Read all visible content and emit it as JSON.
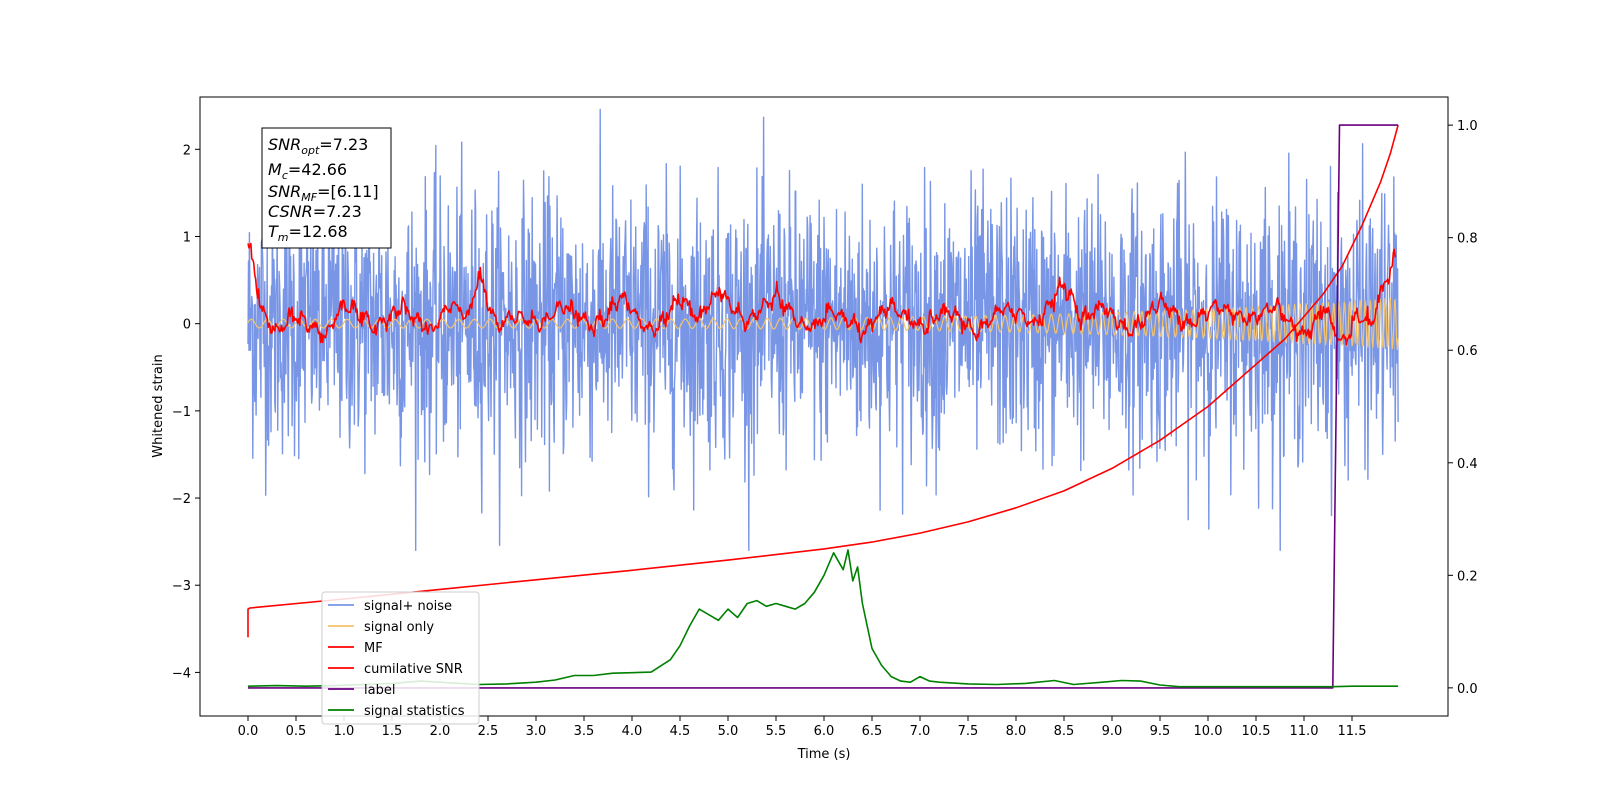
{
  "chart_data": {
    "type": "line",
    "title": "",
    "xlabel": "Time (s)",
    "ylabel": "Whitened strain",
    "y2label": "",
    "xlim": [
      -0.5,
      12.5
    ],
    "ylim": [
      -4.5,
      2.6
    ],
    "y2lim": [
      -0.05,
      1.05
    ],
    "x_ticks": [
      "0.0",
      "0.5",
      "1.0",
      "1.5",
      "2.0",
      "2.5",
      "3.0",
      "3.5",
      "4.0",
      "4.5",
      "5.0",
      "5.5",
      "6.0",
      "6.5",
      "7.0",
      "7.5",
      "8.0",
      "8.5",
      "9.0",
      "9.5",
      "10.0",
      "10.5",
      "11.0",
      "11.5"
    ],
    "y_ticks": [
      "2",
      "1",
      "0",
      "−1",
      "−2",
      "−3",
      "−4"
    ],
    "y2_ticks": [
      "1.0",
      "0.8",
      "0.6",
      "0.4",
      "0.2",
      "0.0"
    ],
    "grid": false,
    "legend_position": "lower-left",
    "info_box": {
      "snr_opt": {
        "name": "SNR",
        "sub": "opt",
        "value": "=7.23"
      },
      "mc": {
        "name": "M",
        "sub": "c",
        "value": "=42.66"
      },
      "snr_mf": {
        "name": "SNR",
        "sub": "MF",
        "value": "=[6.11]"
      },
      "csnr": {
        "name": "CSNR",
        "sub": "",
        "value": "=7.23"
      },
      "tm": {
        "name": "T",
        "sub": "m",
        "value": "=12.68"
      }
    },
    "series": [
      {
        "name": "signal+ noise",
        "color": "#7895e6",
        "axis": "left",
        "kind": "noise",
        "x_range": [
          0.0,
          11.98
        ],
        "std": 0.75,
        "min": -2.6,
        "max": 2.55
      },
      {
        "name": "signal only",
        "color": "#f5c36b",
        "axis": "left",
        "kind": "chirp",
        "x_range": [
          0.0,
          11.98
        ],
        "amplitude_start": 0.05,
        "amplitude_end": 0.3
      },
      {
        "name": "MF",
        "color": "#ff0000",
        "axis": "left",
        "kind": "matched-filter",
        "x": [
          0.0,
          0.05,
          0.15,
          0.3,
          0.5,
          0.8,
          1.0,
          1.3,
          1.6,
          1.9,
          2.1,
          2.3,
          2.4,
          2.6,
          2.8,
          3.0,
          3.3,
          3.6,
          3.9,
          4.2,
          4.5,
          4.7,
          4.9,
          5.2,
          5.5,
          5.8,
          6.1,
          6.4,
          6.7,
          7.0,
          7.3,
          7.6,
          7.9,
          8.2,
          8.5,
          8.7,
          8.9,
          9.2,
          9.5,
          9.8,
          10.1,
          10.4,
          10.7,
          11.0,
          11.2,
          11.4,
          11.55,
          11.7,
          11.85,
          11.95
        ],
        "y": [
          0.95,
          0.7,
          0.1,
          -0.1,
          0.1,
          -0.15,
          0.25,
          -0.05,
          0.2,
          -0.1,
          0.2,
          0.1,
          0.55,
          -0.05,
          0.1,
          0.0,
          0.2,
          -0.05,
          0.3,
          -0.1,
          0.3,
          0.05,
          0.4,
          0.0,
          0.35,
          -0.1,
          0.15,
          -0.1,
          0.2,
          -0.05,
          0.15,
          -0.1,
          0.2,
          0.0,
          0.45,
          0.05,
          0.2,
          -0.1,
          0.25,
          0.0,
          0.2,
          0.05,
          0.2,
          -0.15,
          0.2,
          -0.25,
          0.1,
          0.0,
          0.5,
          0.75
        ]
      },
      {
        "name": "cumilative SNR",
        "color": "#ff0000",
        "axis": "right",
        "x": [
          0.0,
          0.0,
          0.02,
          1.0,
          2.0,
          3.0,
          4.0,
          5.0,
          6.0,
          6.5,
          7.0,
          7.5,
          8.0,
          8.5,
          9.0,
          9.5,
          10.0,
          10.5,
          10.8,
          11.0,
          11.2,
          11.4,
          11.6,
          11.8,
          11.9,
          11.98
        ],
        "y": [
          0.09,
          0.14,
          0.142,
          0.158,
          0.175,
          0.192,
          0.209,
          0.227,
          0.247,
          0.259,
          0.275,
          0.295,
          0.32,
          0.35,
          0.39,
          0.44,
          0.5,
          0.575,
          0.62,
          0.66,
          0.7,
          0.75,
          0.82,
          0.9,
          0.95,
          1.0
        ]
      },
      {
        "name": "label",
        "color": "#6a0080",
        "axis": "right",
        "x": [
          0.0,
          11.3,
          11.37,
          11.98
        ],
        "y": [
          0.0,
          0.0,
          1.0,
          1.0
        ]
      },
      {
        "name": "signal statistics",
        "color": "#008000",
        "axis": "right",
        "x": [
          0.0,
          0.3,
          0.6,
          0.9,
          1.2,
          1.5,
          1.8,
          2.1,
          2.4,
          2.7,
          3.0,
          3.2,
          3.4,
          3.6,
          3.8,
          4.0,
          4.2,
          4.4,
          4.5,
          4.6,
          4.7,
          4.8,
          4.9,
          5.0,
          5.1,
          5.2,
          5.3,
          5.4,
          5.5,
          5.6,
          5.7,
          5.8,
          5.9,
          6.0,
          6.1,
          6.2,
          6.25,
          6.3,
          6.35,
          6.4,
          6.5,
          6.6,
          6.7,
          6.8,
          6.9,
          7.0,
          7.1,
          7.2,
          7.5,
          7.8,
          8.1,
          8.4,
          8.6,
          8.9,
          9.1,
          9.3,
          9.5,
          9.7,
          10.0,
          10.5,
          11.0,
          11.3,
          11.5,
          11.98
        ],
        "y": [
          0.003,
          0.004,
          0.003,
          0.004,
          0.006,
          0.008,
          0.012,
          0.009,
          0.006,
          0.007,
          0.01,
          0.014,
          0.022,
          0.022,
          0.026,
          0.027,
          0.028,
          0.05,
          0.075,
          0.11,
          0.14,
          0.13,
          0.12,
          0.14,
          0.125,
          0.15,
          0.155,
          0.145,
          0.15,
          0.145,
          0.14,
          0.15,
          0.17,
          0.2,
          0.24,
          0.21,
          0.245,
          0.19,
          0.215,
          0.15,
          0.07,
          0.04,
          0.02,
          0.012,
          0.01,
          0.02,
          0.012,
          0.01,
          0.007,
          0.006,
          0.008,
          0.013,
          0.006,
          0.01,
          0.013,
          0.012,
          0.005,
          0.002,
          0.002,
          0.002,
          0.002,
          0.002,
          0.003,
          0.003
        ]
      }
    ]
  }
}
